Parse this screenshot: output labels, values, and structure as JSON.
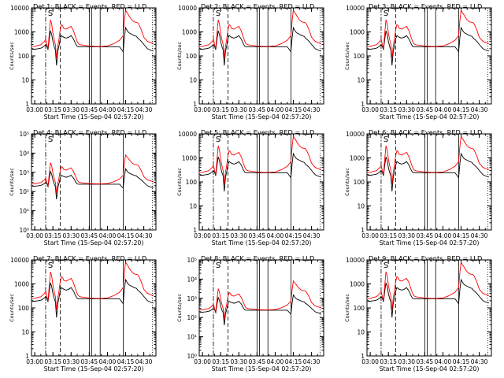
{
  "chart_data": [
    {
      "type": "line",
      "title": "Det 1: BLACK = Events, RED = LLD",
      "xlabel": "Start Time (15-Sep-04 02:57:20)",
      "ylabel": "Counts/sec",
      "yscale": "log",
      "ylim": [
        1,
        10000
      ],
      "xlim": [
        "02:57:20",
        "04:40"
      ],
      "x_tick_labels": [
        "03:00",
        "03:15",
        "03:30",
        "03:45",
        "04:00",
        "04:15",
        "04:30"
      ],
      "y_tick_labels": [
        "1",
        "10",
        "100",
        "1000",
        "10000"
      ],
      "series": [
        {
          "name": "Events",
          "color": "#000000"
        },
        {
          "name": "LLD",
          "color": "#ff0000"
        }
      ],
      "markers": {
        "S": "03:13"
      }
    },
    {
      "type": "line",
      "title": "Det 2: BLACK = Events, RED = LLD",
      "xlabel": "Start Time (15-Sep-04 02:57:20)",
      "ylabel": "Counts/sec",
      "yscale": "log",
      "ylim": [
        1,
        10000
      ],
      "xlim": [
        "02:57:20",
        "04:40"
      ],
      "x_tick_labels": [
        "03:00",
        "03:15",
        "03:30",
        "03:45",
        "04:00",
        "04:15",
        "04:30"
      ],
      "y_tick_labels": [
        "1",
        "10",
        "100",
        "1000",
        "10000"
      ],
      "series": [
        {
          "name": "Events",
          "color": "#000000"
        },
        {
          "name": "LLD",
          "color": "#ff0000"
        }
      ],
      "markers": {
        "S": "03:13"
      }
    },
    {
      "type": "line",
      "title": "Det 3: BLACK = Events, RED = LLD",
      "xlabel": "Start Time (15-Sep-04 02:57:20)",
      "ylabel": "Counts/sec",
      "yscale": "log",
      "ylim": [
        1,
        10000
      ],
      "xlim": [
        "02:57:20",
        "04:40"
      ],
      "x_tick_labels": [
        "03:00",
        "03:15",
        "03:30",
        "03:45",
        "04:00",
        "04:15",
        "04:30"
      ],
      "y_tick_labels": [
        "1",
        "10",
        "100",
        "1000",
        "10000"
      ],
      "series": [
        {
          "name": "Events",
          "color": "#000000"
        },
        {
          "name": "LLD",
          "color": "#ff0000"
        }
      ],
      "markers": {
        "S": "03:13"
      }
    },
    {
      "type": "line",
      "title": "Det 4: BLACK = Events, RED = LLD",
      "xlabel": "Start Time (15-Sep-04 02:57:20)",
      "ylabel": "Counts/sec",
      "yscale": "log",
      "ylim": [
        1,
        100000
      ],
      "xlim": [
        "02:57:20",
        "04:40"
      ],
      "x_tick_labels": [
        "03:00",
        "03:15",
        "03:30",
        "03:45",
        "04:00",
        "04:15",
        "04:30"
      ],
      "y_tick_labels": [
        "10⁰",
        "10¹",
        "10²",
        "10³",
        "10⁴",
        "10⁵"
      ],
      "series": [
        {
          "name": "Events",
          "color": "#000000"
        },
        {
          "name": "LLD",
          "color": "#ff0000"
        }
      ],
      "markers": {
        "S": "03:13"
      }
    },
    {
      "type": "line",
      "title": "Det 5: BLACK = Events, RED = LLD",
      "xlabel": "Start Time (15-Sep-04 02:57:20)",
      "ylabel": "Counts/sec",
      "yscale": "log",
      "ylim": [
        1,
        10000
      ],
      "xlim": [
        "02:57:20",
        "04:40"
      ],
      "x_tick_labels": [
        "03:00",
        "03:15",
        "03:30",
        "03:45",
        "04:00",
        "04:15",
        "04:30"
      ],
      "y_tick_labels": [
        "1",
        "10",
        "100",
        "1000",
        "10000"
      ],
      "series": [
        {
          "name": "Events",
          "color": "#000000"
        },
        {
          "name": "LLD",
          "color": "#ff0000"
        }
      ],
      "markers": {
        "S": "03:13"
      }
    },
    {
      "type": "line",
      "title": "Det 6: BLACK = Events, RED = LLD",
      "xlabel": "Start Time (15-Sep-04 02:57:20)",
      "ylabel": "Counts/sec",
      "yscale": "log",
      "ylim": [
        1,
        10000
      ],
      "xlim": [
        "02:57:20",
        "04:40"
      ],
      "x_tick_labels": [
        "03:00",
        "03:15",
        "03:30",
        "03:45",
        "04:00",
        "04:15",
        "04:30"
      ],
      "y_tick_labels": [
        "1",
        "10",
        "100",
        "1000",
        "10000"
      ],
      "series": [
        {
          "name": "Events",
          "color": "#000000"
        },
        {
          "name": "LLD",
          "color": "#ff0000"
        }
      ],
      "markers": {
        "S": "03:13"
      }
    },
    {
      "type": "line",
      "title": "Det 7: BLACK = Events, RED = LLD",
      "xlabel": "Start Time (15-Sep-04 02:57:20)",
      "ylabel": "Counts/sec",
      "yscale": "log",
      "ylim": [
        1,
        10000
      ],
      "xlim": [
        "02:57:20",
        "04:40"
      ],
      "x_tick_labels": [
        "03:00",
        "03:15",
        "03:30",
        "03:45",
        "04:00",
        "04:15",
        "04:30"
      ],
      "y_tick_labels": [
        "1",
        "10",
        "100",
        "1000",
        "10000"
      ],
      "series": [
        {
          "name": "Events",
          "color": "#000000"
        },
        {
          "name": "LLD",
          "color": "#ff0000"
        }
      ],
      "markers": {
        "S": "03:13"
      }
    },
    {
      "type": "line",
      "title": "Det 8: BLACK = Events, RED = LLD",
      "xlabel": "Start Time (15-Sep-04 02:57:20)",
      "ylabel": "Counts/sec",
      "yscale": "log",
      "ylim": [
        1,
        100000
      ],
      "xlim": [
        "02:57:20",
        "04:40"
      ],
      "x_tick_labels": [
        "03:00",
        "03:15",
        "03:30",
        "03:45",
        "04:00",
        "04:15",
        "04:30"
      ],
      "y_tick_labels": [
        "10⁰",
        "10¹",
        "10²",
        "10³",
        "10⁴",
        "10⁵"
      ],
      "series": [
        {
          "name": "Events",
          "color": "#000000"
        },
        {
          "name": "LLD",
          "color": "#ff0000"
        }
      ],
      "markers": {
        "S": "03:13"
      }
    },
    {
      "type": "line",
      "title": "Det 9: BLACK = Events, RED = LLD",
      "xlabel": "Start Time (15-Sep-04 02:57:20)",
      "ylabel": "Counts/sec",
      "yscale": "log",
      "ylim": [
        1,
        10000
      ],
      "xlim": [
        "02:57:20",
        "04:40"
      ],
      "x_tick_labels": [
        "03:00",
        "03:15",
        "03:30",
        "03:45",
        "04:00",
        "04:15",
        "04:30"
      ],
      "y_tick_labels": [
        "1",
        "10",
        "100",
        "1000",
        "10000"
      ],
      "series": [
        {
          "name": "Events",
          "color": "#000000"
        },
        {
          "name": "LLD",
          "color": "#ff0000"
        }
      ],
      "markers": {
        "S": "03:13"
      }
    }
  ],
  "shared": {
    "x_times": [
      "02:58",
      "03:00",
      "03:03",
      "03:05",
      "03:06",
      "03:08",
      "03:09",
      "03:10",
      "03:11",
      "03:12",
      "03:13",
      "03:14",
      "03:15",
      "03:16",
      "03:17",
      "03:18",
      "03:19",
      "03:20",
      "03:21",
      "03:22",
      "03:23",
      "03:24",
      "03:26",
      "03:28",
      "03:30",
      "03:32",
      "03:34",
      "03:35",
      "03:36",
      "03:37",
      "03:38",
      "03:40",
      "03:45",
      "03:50",
      "03:55",
      "04:00",
      "04:05",
      "04:10",
      "04:13",
      "04:14",
      "04:15",
      "04:16",
      "04:17",
      "04:18",
      "04:20",
      "04:22",
      "04:24",
      "04:25",
      "04:26",
      "04:28",
      "04:30",
      "04:33",
      "04:36",
      "04:38"
    ],
    "lld_values": [
      250,
      250,
      280,
      290,
      320,
      400,
      500,
      300,
      200,
      900,
      3200,
      2200,
      900,
      500,
      300,
      80,
      250,
      500,
      1200,
      2000,
      1800,
      1400,
      1300,
      1500,
      1700,
      1100,
      550,
      400,
      320,
      300,
      290,
      280,
      260,
      250,
      250,
      260,
      320,
      450,
      700,
      3000,
      8000,
      6500,
      5500,
      4500,
      3200,
      2600,
      2500,
      2400,
      2000,
      1200,
      600,
      400,
      350,
      330
    ],
    "event_values": [
      190,
      190,
      200,
      210,
      220,
      260,
      300,
      250,
      180,
      500,
      1100,
      800,
      400,
      250,
      180,
      40,
      150,
      260,
      500,
      700,
      650,
      600,
      550,
      600,
      700,
      500,
      300,
      250,
      240,
      240,
      240,
      240,
      240,
      240,
      240,
      240,
      240,
      240,
      150,
      600,
      1500,
      1200,
      1000,
      900,
      800,
      700,
      650,
      550,
      500,
      400,
      300,
      200,
      170,
      160
    ],
    "lines": [
      {
        "t": "03:09",
        "style": "dashdot"
      },
      {
        "t": "03:21",
        "style": "dashed"
      },
      {
        "t": "03:45",
        "style": "solid"
      },
      {
        "t": "03:47",
        "style": "solid"
      },
      {
        "t": "03:54",
        "style": "solid"
      },
      {
        "t": "04:13",
        "style": "solid"
      },
      {
        "t": "04:37",
        "style": "dotted"
      }
    ]
  }
}
